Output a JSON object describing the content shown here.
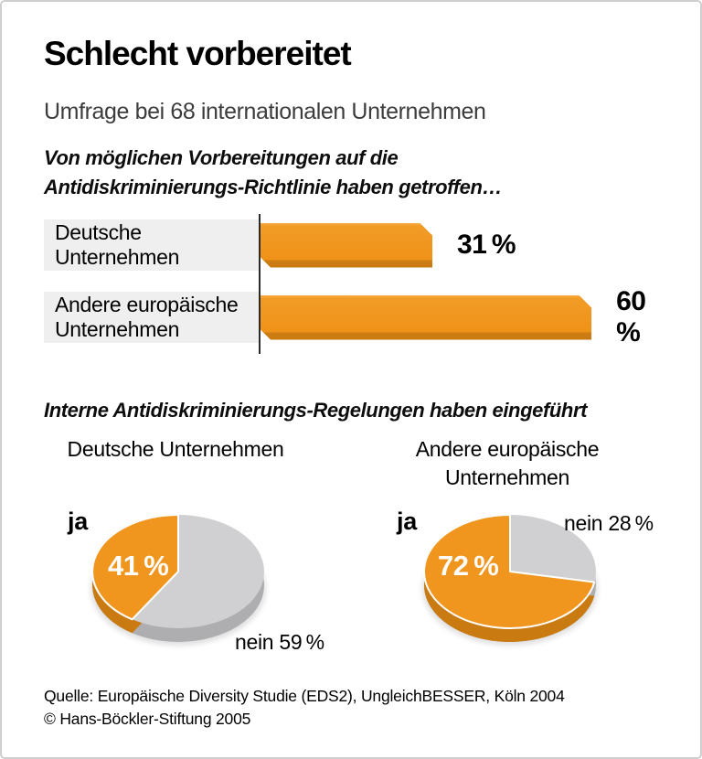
{
  "header": {
    "title": "Schlecht vorbereitet",
    "subtitle": "Umfrage bei 68 internationalen Unternehmen"
  },
  "section_bar": {
    "heading_line1": "Von möglichen Vorbereitungen auf die",
    "heading_line2": "Antidiskriminierungs-Richtlinie haben getroffen…"
  },
  "section_pie": {
    "heading": "Interne Antidiskriminierungs-Regelungen haben eingeführt"
  },
  "footer": {
    "source": "Quelle: Europäische Diversity Studie (EDS2), UngleichBESSER, Köln 2004",
    "copyright": "© Hans-Böckler-Stiftung 2005"
  },
  "colors": {
    "orange": "#F0961E",
    "orange_dark": "#C97B11",
    "gray_slice": "#D0D0D2",
    "gray_slice_dark": "#AEAEB1",
    "label_box_gray": "#EFEFEF"
  },
  "chart_data": [
    {
      "type": "bar",
      "orientation": "horizontal",
      "title": "Von möglichen Vorbereitungen auf die Antidiskriminierungs-Richtlinie haben getroffen…",
      "categories": [
        "Deutsche Unternehmen",
        "Andere europäische Unternehmen"
      ],
      "values": [
        31,
        60
      ],
      "unit": "%",
      "value_labels": [
        "31 %",
        "60 %"
      ],
      "xlim": [
        0,
        60
      ],
      "bar_color": "#F0961E"
    },
    {
      "type": "pie",
      "title": "Deutsche Unternehmen",
      "slices": [
        {
          "label": "ja",
          "value": 41,
          "value_label": "41 %",
          "color": "#F0961E"
        },
        {
          "label": "nein",
          "value": 59,
          "value_label": "nein 59 %",
          "color": "#D0D0D2"
        }
      ]
    },
    {
      "type": "pie",
      "title": "Andere europäische Unternehmen",
      "slices": [
        {
          "label": "ja",
          "value": 72,
          "value_label": "72 %",
          "color": "#F0961E"
        },
        {
          "label": "nein",
          "value": 28,
          "value_label": "nein 28 %",
          "color": "#D0D0D2"
        }
      ]
    }
  ]
}
